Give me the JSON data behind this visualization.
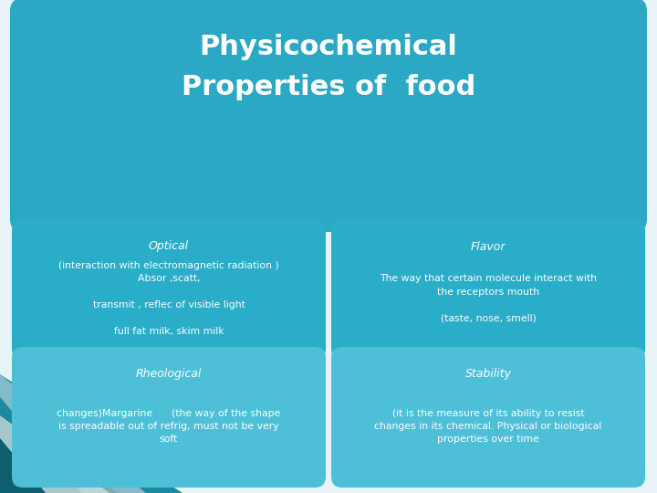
{
  "title_line1": "Physicochemical",
  "title_line2": "Properties of  food",
  "bg_color": "#e8f4f8",
  "header_color": "#2aa8c4",
  "card_color_top": "#29adc8",
  "card_color_bottom": "#4dc0d8",
  "title_color": "#ffffff",
  "text_color": "#ffffff",
  "card1_title": "Optical",
  "card1_body": "(interaction with electromagnetic radiation )\nAbsor ,scatt,\n\ntransmit , reflec of visible light\n\nfull fat milk, skim milk",
  "card2_title": "Flavor",
  "card2_body": "The way that certain molecule interact with\nthe receptors mouth\n\n(taste, nose, smell)",
  "card3_title": "Rheological",
  "card3_body": "changes)Margarine      (the way of the shape\nis spreadable out of refrig, must not be very\nsoft",
  "card4_title": "Stability",
  "card4_body": "(it is the measure of its ability to resist\nchanges in its chemical. Physical or biological\nproperties over time",
  "stripe1_color": "#1a8aa0",
  "stripe2_color": "#0d5f6e",
  "stripe3_color": "#e8f4f8",
  "stripe4_color": "#c8dde6"
}
